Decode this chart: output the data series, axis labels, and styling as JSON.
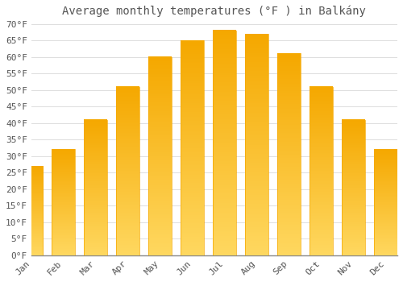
{
  "title_text": "Average monthly temperatures (°F ) in Balkány",
  "months": [
    "Jan",
    "Feb",
    "Mar",
    "Apr",
    "May",
    "Jun",
    "Jul",
    "Aug",
    "Sep",
    "Oct",
    "Nov",
    "Dec"
  ],
  "values": [
    27,
    32,
    41,
    51,
    60,
    65,
    68,
    67,
    61,
    51,
    41,
    32
  ],
  "bar_color_top": "#F5A800",
  "bar_color_bottom": "#FFD860",
  "background_color": "#FFFFFF",
  "grid_color": "#DDDDDD",
  "text_color": "#555555",
  "ylim_max": 70,
  "ytick_step": 5,
  "title_fontsize": 10,
  "tick_fontsize": 8,
  "font_family": "monospace"
}
